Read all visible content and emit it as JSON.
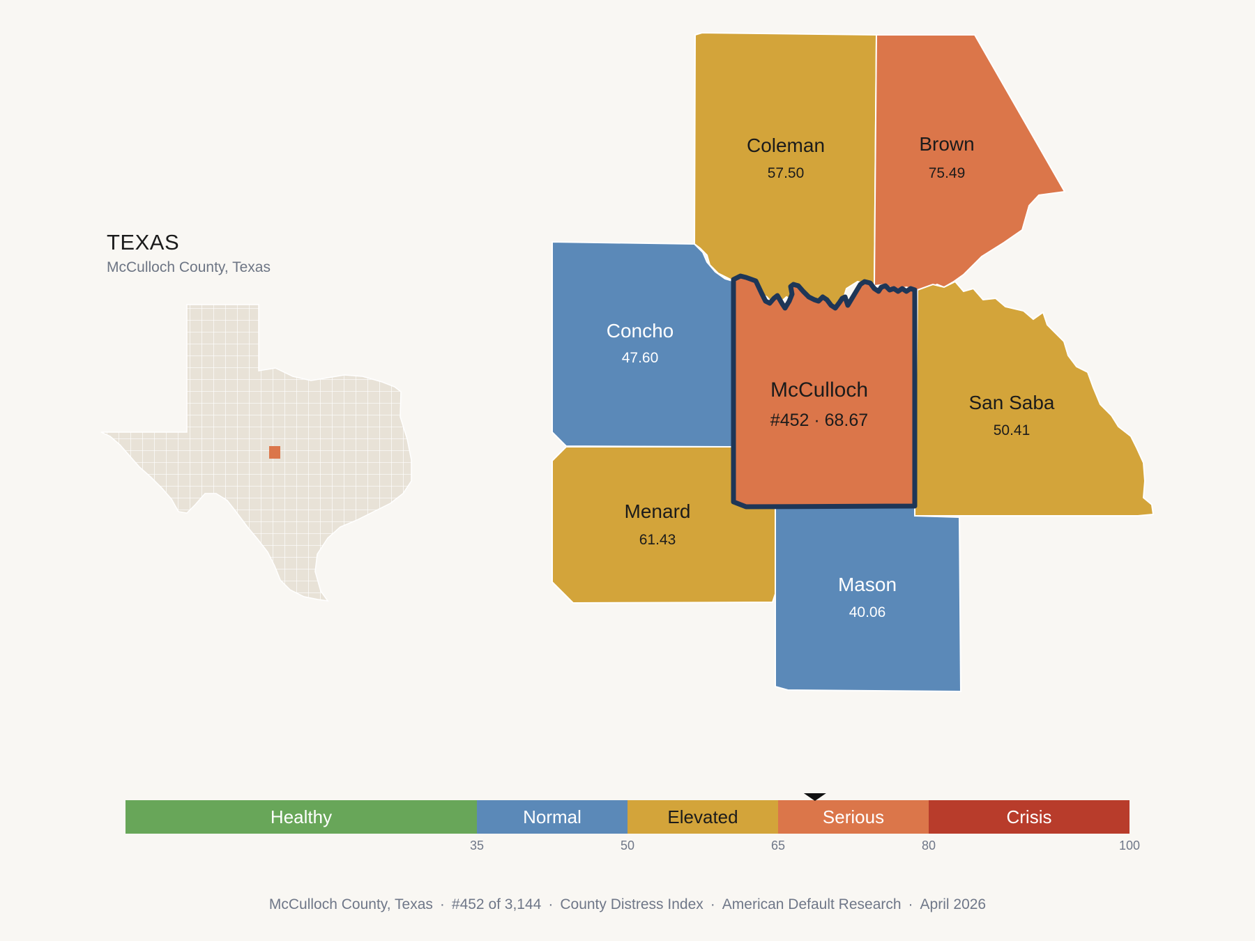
{
  "inset": {
    "title": "TEXAS",
    "subtitle": "McCulloch County, Texas"
  },
  "counties": [
    {
      "id": "coleman",
      "name": "Coleman",
      "value": "57.50",
      "category": "Elevated"
    },
    {
      "id": "brown",
      "name": "Brown",
      "value": "75.49",
      "category": "Serious"
    },
    {
      "id": "concho",
      "name": "Concho",
      "value": "47.60",
      "category": "Normal"
    },
    {
      "id": "mcculloch",
      "name": "McCulloch",
      "value": "#452 · 68.67",
      "category": "Serious",
      "highlighted": true
    },
    {
      "id": "san-saba",
      "name": "San Saba",
      "value": "50.41",
      "category": "Elevated"
    },
    {
      "id": "menard",
      "name": "Menard",
      "value": "61.43",
      "category": "Elevated"
    },
    {
      "id": "mason",
      "name": "Mason",
      "value": "40.06",
      "category": "Normal"
    }
  ],
  "scale": {
    "min": 0,
    "max": 100,
    "marker_value": 68.67,
    "bands": [
      {
        "label": "Healthy",
        "from": 0,
        "to": 35,
        "color": "#68a659"
      },
      {
        "label": "Normal",
        "from": 35,
        "to": 50,
        "color": "#5b89b8"
      },
      {
        "label": "Elevated",
        "from": 50,
        "to": 65,
        "color": "#d3a43a"
      },
      {
        "label": "Serious",
        "from": 65,
        "to": 80,
        "color": "#db764a"
      },
      {
        "label": "Crisis",
        "from": 80,
        "to": 100,
        "color": "#b83c2b"
      }
    ],
    "ticks": [
      "35",
      "50",
      "65",
      "80",
      "100"
    ]
  },
  "colors": {
    "Normal": "#5b89b8",
    "Elevated": "#d3a43a",
    "Serious": "#db764a",
    "highlight_outline": "#1e3657",
    "state_fill": "#e8e2d7"
  },
  "footer": {
    "county": "McCulloch County, Texas",
    "rank": "#452 of 3,144",
    "index": "County Distress Index",
    "source": "American Default Research",
    "date": "April 2026"
  }
}
